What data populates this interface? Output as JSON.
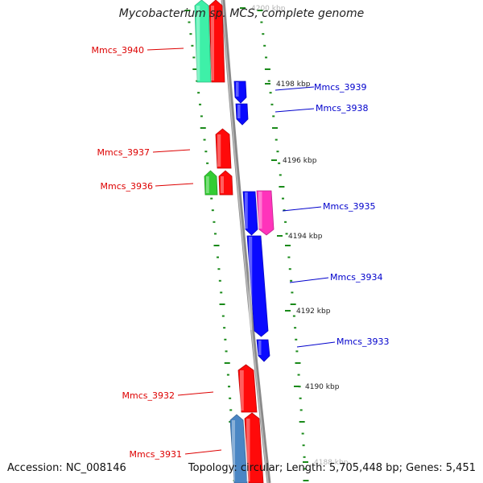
{
  "title": "Mycobacterium sp. MCS, complete genome",
  "footer": {
    "accession": "Accession: NC_008146",
    "summary": "Topology: circular; Length: 5,705,448 bp; Genes: 5,451"
  },
  "ticks": [
    {
      "label": "4200 kbp",
      "faded": true
    },
    {
      "label": "4198 kbp"
    },
    {
      "label": "4196 kbp"
    },
    {
      "label": "4194 kbp"
    },
    {
      "label": "4192 kbp"
    },
    {
      "label": "4190 kbp"
    },
    {
      "label": "4188 kbp",
      "faded": true
    }
  ],
  "genes": [
    {
      "id": "g3941a",
      "label": "",
      "strand": "minus",
      "color": "#3ef0a8"
    },
    {
      "id": "g3940",
      "label": "Mmcs_3940",
      "strand": "minus",
      "color": "#ff0a0a"
    },
    {
      "id": "g3939",
      "label": "Mmcs_3939",
      "strand": "plus",
      "color": "#0a0aff"
    },
    {
      "id": "g3938",
      "label": "Mmcs_3938",
      "strand": "plus",
      "color": "#0a0aff"
    },
    {
      "id": "g3937",
      "label": "Mmcs_3937",
      "strand": "minus",
      "color": "#ff0a0a"
    },
    {
      "id": "g3936a",
      "label": "Mmcs_3936",
      "strand": "minus",
      "color": "#33cc33"
    },
    {
      "id": "g3936b",
      "label": "",
      "strand": "minus",
      "color": "#ff0a0a"
    },
    {
      "id": "g3935a",
      "label": "Mmcs_3935",
      "strand": "plus",
      "color": "#0a0aff"
    },
    {
      "id": "g3935b",
      "label": "",
      "strand": "plus",
      "color": "#ff33bb"
    },
    {
      "id": "g3934",
      "label": "Mmcs_3934",
      "strand": "plus",
      "color": "#0a0aff"
    },
    {
      "id": "g3933",
      "label": "Mmcs_3933",
      "strand": "plus",
      "color": "#0a0aff"
    },
    {
      "id": "g3932",
      "label": "Mmcs_3932",
      "strand": "minus",
      "color": "#ff0a0a"
    },
    {
      "id": "g3931a",
      "label": "",
      "strand": "minus",
      "color": "#4a86c4"
    },
    {
      "id": "g3931b",
      "label": "Mmcs_3931",
      "strand": "minus",
      "color": "#ff0a0a"
    }
  ],
  "colors": {
    "backbone": "#8a8a8a",
    "gc_dash": "#1a8a1a",
    "label_plus": "#0000cc",
    "label_minus": "#dd0000",
    "tick_text": "#222222"
  }
}
